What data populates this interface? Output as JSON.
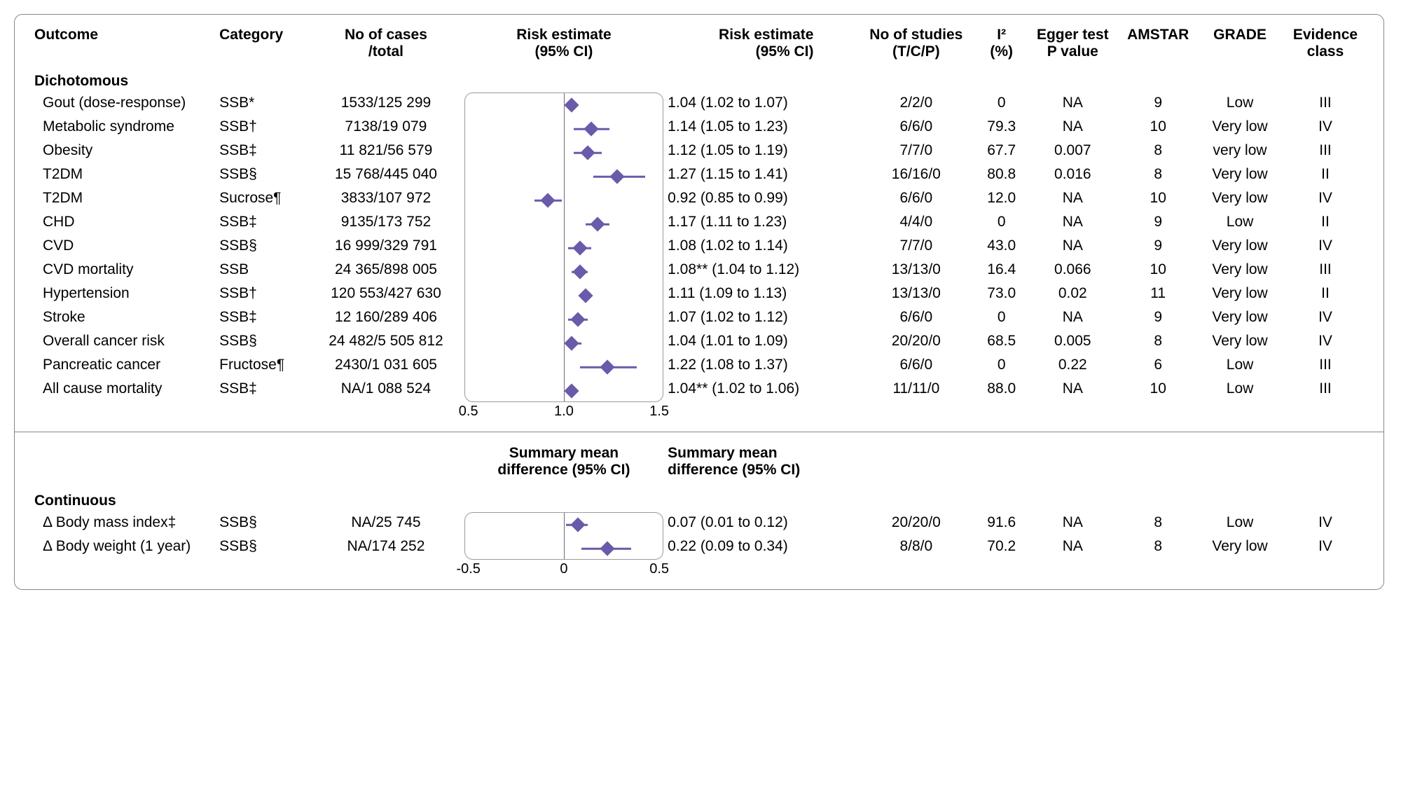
{
  "headers": {
    "outcome": "Outcome",
    "category": "Category",
    "cases": "No of cases\n/total",
    "plot": "Risk estimate\n(95% CI)",
    "risktext": "Risk estimate\n(95% CI)",
    "studies": "No of studies\n(T/C/P)",
    "i2": "I²\n(%)",
    "egger": "Egger test\nP value",
    "amstar": "AMSTAR",
    "grade": "GRADE",
    "evclass": "Evidence\nclass"
  },
  "sections": {
    "dichotomous": "Dichotomous",
    "continuous": "Continuous"
  },
  "subheaders": {
    "contPlot": "Summary mean\ndifference (95% CI)",
    "contText": "Summary mean\ndifference (95% CI)"
  },
  "plotDich": {
    "min": 0.5,
    "ref": 1.0,
    "max": 1.5,
    "ticks": [
      "0.5",
      "1.0",
      "1.5"
    ],
    "marker_color": "#6a5aa9",
    "line_color": "#6a5aa9",
    "ref_color": "#6d6a72",
    "frame_color": "#9c9aa0"
  },
  "plotCont": {
    "min": -0.5,
    "ref": 0.0,
    "max": 0.5,
    "ticks": [
      "-0.5",
      "0",
      "0.5"
    ],
    "marker_color": "#6a5aa9",
    "line_color": "#6a5aa9",
    "ref_color": "#6d6a72",
    "frame_color": "#9c9aa0"
  },
  "dich": [
    {
      "outcome": "Gout (dose-response)",
      "category": "SSB*",
      "cases": "1533/125 299",
      "pt": 1.04,
      "lo": 1.02,
      "hi": 1.07,
      "risktext": "1.04 (1.02 to 1.07)",
      "studies": "2/2/0",
      "i2": "0",
      "egger": "NA",
      "amstar": "9",
      "grade": "Low",
      "evclass": "III"
    },
    {
      "outcome": "Metabolic syndrome",
      "category": "SSB†",
      "cases": "7138/19 079",
      "pt": 1.14,
      "lo": 1.05,
      "hi": 1.23,
      "risktext": "1.14 (1.05 to 1.23)",
      "studies": "6/6/0",
      "i2": "79.3",
      "egger": "NA",
      "amstar": "10",
      "grade": "Very low",
      "evclass": "IV"
    },
    {
      "outcome": "Obesity",
      "category": "SSB‡",
      "cases": "11 821/56 579",
      "pt": 1.12,
      "lo": 1.05,
      "hi": 1.19,
      "risktext": "1.12 (1.05 to 1.19)",
      "studies": "7/7/0",
      "i2": "67.7",
      "egger": "0.007",
      "amstar": "8",
      "grade": "very low",
      "evclass": "III"
    },
    {
      "outcome": "T2DM",
      "category": "SSB§",
      "cases": "15 768/445 040",
      "pt": 1.27,
      "lo": 1.15,
      "hi": 1.41,
      "risktext": "1.27 (1.15 to 1.41)",
      "studies": "16/16/0",
      "i2": "80.8",
      "egger": "0.016",
      "amstar": "8",
      "grade": "Very low",
      "evclass": "II"
    },
    {
      "outcome": "T2DM",
      "category": "Sucrose¶",
      "cases": "3833/107 972",
      "pt": 0.92,
      "lo": 0.85,
      "hi": 0.99,
      "risktext": "0.92 (0.85 to 0.99)",
      "studies": "6/6/0",
      "i2": "12.0",
      "egger": "NA",
      "amstar": "10",
      "grade": "Very low",
      "evclass": "IV"
    },
    {
      "outcome": "CHD",
      "category": "SSB‡",
      "cases": "9135/173 752",
      "pt": 1.17,
      "lo": 1.11,
      "hi": 1.23,
      "risktext": "1.17 (1.11 to 1.23)",
      "studies": "4/4/0",
      "i2": "0",
      "egger": "NA",
      "amstar": "9",
      "grade": "Low",
      "evclass": "II"
    },
    {
      "outcome": "CVD",
      "category": "SSB§",
      "cases": "16 999/329 791",
      "pt": 1.08,
      "lo": 1.02,
      "hi": 1.14,
      "risktext": "1.08 (1.02 to 1.14)",
      "studies": "7/7/0",
      "i2": "43.0",
      "egger": "NA",
      "amstar": "9",
      "grade": "Very low",
      "evclass": "IV"
    },
    {
      "outcome": "CVD mortality",
      "category": "SSB",
      "cases": "24 365/898 005",
      "pt": 1.08,
      "lo": 1.04,
      "hi": 1.12,
      "risktext": "1.08** (1.04 to 1.12)",
      "studies": "13/13/0",
      "i2": "16.4",
      "egger": "0.066",
      "amstar": "10",
      "grade": "Very low",
      "evclass": "III"
    },
    {
      "outcome": "Hypertension",
      "category": "SSB†",
      "cases": "120 553/427 630",
      "pt": 1.11,
      "lo": 1.09,
      "hi": 1.13,
      "risktext": "1.11 (1.09 to 1.13)",
      "studies": "13/13/0",
      "i2": "73.0",
      "egger": "0.02",
      "amstar": "11",
      "grade": "Very low",
      "evclass": "II"
    },
    {
      "outcome": "Stroke",
      "category": "SSB‡",
      "cases": "12 160/289 406",
      "pt": 1.07,
      "lo": 1.02,
      "hi": 1.12,
      "risktext": "1.07 (1.02 to 1.12)",
      "studies": "6/6/0",
      "i2": "0",
      "egger": "NA",
      "amstar": "9",
      "grade": "Very low",
      "evclass": "IV"
    },
    {
      "outcome": "Overall cancer risk",
      "category": "SSB§",
      "cases": "24 482/5 505 812",
      "pt": 1.04,
      "lo": 1.01,
      "hi": 1.09,
      "risktext": "1.04 (1.01 to 1.09)",
      "studies": "20/20/0",
      "i2": "68.5",
      "egger": "0.005",
      "amstar": "8",
      "grade": "Very low",
      "evclass": "IV"
    },
    {
      "outcome": "Pancreatic cancer",
      "category": "Fructose¶",
      "cases": "2430/1 031 605",
      "pt": 1.22,
      "lo": 1.08,
      "hi": 1.37,
      "risktext": "1.22 (1.08 to 1.37)",
      "studies": "6/6/0",
      "i2": "0",
      "egger": "0.22",
      "amstar": "6",
      "grade": "Low",
      "evclass": "III"
    },
    {
      "outcome": "All cause mortality",
      "category": "SSB‡",
      "cases": "NA/1 088 524",
      "pt": 1.04,
      "lo": 1.02,
      "hi": 1.06,
      "risktext": "1.04** (1.02 to 1.06)",
      "studies": "11/11/0",
      "i2": "88.0",
      "egger": "NA",
      "amstar": "10",
      "grade": "Low",
      "evclass": "III"
    }
  ],
  "cont": [
    {
      "outcome": "Δ Body mass index‡",
      "category": "SSB§",
      "cases": "NA/25 745",
      "pt": 0.07,
      "lo": 0.01,
      "hi": 0.12,
      "risktext": "0.07 (0.01 to 0.12)",
      "studies": "20/20/0",
      "i2": "91.6",
      "egger": "NA",
      "amstar": "8",
      "grade": "Low",
      "evclass": "IV"
    },
    {
      "outcome": "Δ Body weight (1 year)",
      "category": "SSB§",
      "cases": "NA/174 252",
      "pt": 0.22,
      "lo": 0.09,
      "hi": 0.34,
      "risktext": "0.22 (0.09 to 0.34)",
      "studies": "8/8/0",
      "i2": "70.2",
      "egger": "NA",
      "amstar": "8",
      "grade": "Very low",
      "evclass": "IV"
    }
  ]
}
